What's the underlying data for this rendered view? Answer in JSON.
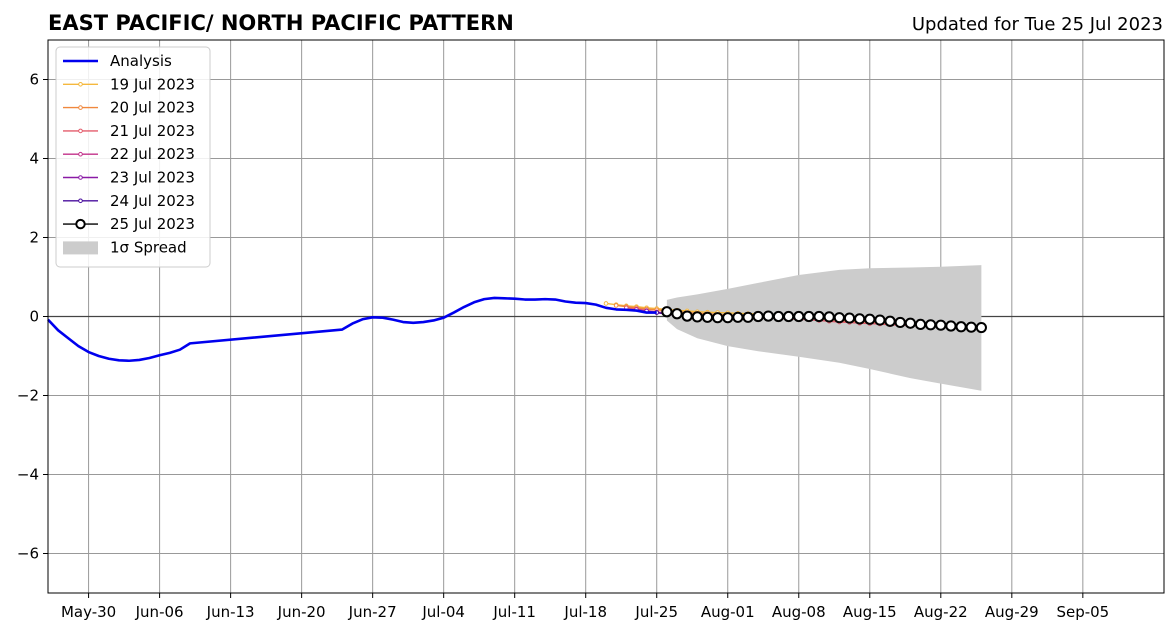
{
  "chart_data": {
    "type": "line",
    "title": "EAST PACIFIC/ NORTH PACIFIC PATTERN",
    "subtitle": "Updated for Tue 25 Jul 2023",
    "xlabel": "",
    "ylabel": "",
    "ylim": [
      -7,
      7
    ],
    "yticks": [
      -6,
      -4,
      -2,
      0,
      2,
      4,
      6
    ],
    "ytick_labels": [
      "−6",
      "−4",
      "−2",
      "0",
      "2",
      "4",
      "6"
    ],
    "xlim": [
      "2023-05-26",
      "2023-09-13"
    ],
    "xtick_dates": [
      "2023-05-30",
      "2023-06-06",
      "2023-06-13",
      "2023-06-20",
      "2023-06-27",
      "2023-07-04",
      "2023-07-11",
      "2023-07-18",
      "2023-07-25",
      "2023-08-01",
      "2023-08-08",
      "2023-08-15",
      "2023-08-22",
      "2023-08-29",
      "2023-09-05"
    ],
    "xtick_labels": [
      "May-30",
      "Jun-06",
      "Jun-13",
      "Jun-20",
      "Jun-27",
      "Jul-04",
      "Jul-11",
      "Jul-18",
      "Jul-25",
      "Aug-01",
      "Aug-08",
      "Aug-15",
      "Aug-22",
      "Aug-29",
      "Sep-05"
    ],
    "grid": true,
    "legend_placement": "top-left",
    "legend": [
      "Analysis",
      "19 Jul 2023",
      "20 Jul 2023",
      "21 Jul 2023",
      "22 Jul 2023",
      "23 Jul 2023",
      "24 Jul 2023",
      "25 Jul 2023",
      "1σ Spread"
    ],
    "series": [
      {
        "name": "Analysis",
        "color": "#0000ee",
        "x": [
          "2023-05-26",
          "2023-05-27",
          "2023-05-28",
          "2023-05-29",
          "2023-05-30",
          "2023-05-31",
          "2023-06-01",
          "2023-06-02",
          "2023-06-03",
          "2023-06-04",
          "2023-06-05",
          "2023-06-06",
          "2023-06-07",
          "2023-06-08",
          "2023-06-09",
          "2023-06-24",
          "2023-06-25",
          "2023-06-26",
          "2023-06-27",
          "2023-06-28",
          "2023-06-29",
          "2023-06-30",
          "2023-07-01",
          "2023-07-02",
          "2023-07-03",
          "2023-07-04",
          "2023-07-05",
          "2023-07-06",
          "2023-07-07",
          "2023-07-08",
          "2023-07-09",
          "2023-07-10",
          "2023-07-11",
          "2023-07-12",
          "2023-07-13",
          "2023-07-14",
          "2023-07-15",
          "2023-07-16",
          "2023-07-17",
          "2023-07-18",
          "2023-07-19",
          "2023-07-20",
          "2023-07-21",
          "2023-07-22",
          "2023-07-23",
          "2023-07-24",
          "2023-07-25"
        ],
        "values": [
          -0.08,
          -0.35,
          -0.55,
          -0.75,
          -0.9,
          -1.0,
          -1.07,
          -1.11,
          -1.12,
          -1.1,
          -1.05,
          -0.98,
          -0.92,
          -0.84,
          -0.68,
          -0.33,
          -0.18,
          -0.07,
          -0.02,
          -0.03,
          -0.08,
          -0.14,
          -0.16,
          -0.14,
          -0.1,
          -0.03,
          0.1,
          0.24,
          0.36,
          0.44,
          0.47,
          0.46,
          0.45,
          0.43,
          0.43,
          0.44,
          0.43,
          0.38,
          0.35,
          0.34,
          0.3,
          0.22,
          0.18,
          0.17,
          0.15,
          0.1,
          0.1
        ]
      },
      {
        "name": "19 Jul 2023",
        "color": "#f5b83d",
        "x": [
          "2023-07-20",
          "2023-07-21",
          "2023-07-22",
          "2023-07-23",
          "2023-07-24",
          "2023-07-25",
          "2023-07-26",
          "2023-07-27",
          "2023-07-28",
          "2023-07-29",
          "2023-07-30",
          "2023-07-31",
          "2023-08-01",
          "2023-08-02",
          "2023-08-03",
          "2023-08-04"
        ],
        "values": [
          0.33,
          0.3,
          0.27,
          0.25,
          0.22,
          0.2,
          0.18,
          0.16,
          0.14,
          0.12,
          0.11,
          0.1,
          0.09,
          0.08,
          0.07,
          0.06
        ]
      },
      {
        "name": "20 Jul 2023",
        "color": "#f0883e",
        "x": [
          "2023-07-21",
          "2023-07-22",
          "2023-07-23",
          "2023-07-24",
          "2023-07-25",
          "2023-07-26",
          "2023-07-27",
          "2023-07-28",
          "2023-07-29",
          "2023-07-30",
          "2023-07-31",
          "2023-08-01",
          "2023-08-02",
          "2023-08-03",
          "2023-08-04",
          "2023-08-05",
          "2023-08-06",
          "2023-08-07",
          "2023-08-08",
          "2023-08-09",
          "2023-08-10",
          "2023-08-11",
          "2023-08-12",
          "2023-08-13",
          "2023-08-14",
          "2023-08-15",
          "2023-08-16",
          "2023-08-17",
          "2023-08-18",
          "2023-08-19",
          "2023-08-20",
          "2023-08-21"
        ],
        "values": [
          0.28,
          0.25,
          0.22,
          0.19,
          0.17,
          0.14,
          0.12,
          0.1,
          0.08,
          0.07,
          0.05,
          0.04,
          0.03,
          0.02,
          0.01,
          0.0,
          -0.01,
          -0.02,
          -0.03,
          -0.05,
          -0.06,
          -0.08,
          -0.1,
          -0.12,
          -0.13,
          -0.15,
          -0.16,
          -0.18,
          -0.19,
          -0.2,
          -0.22,
          -0.23
        ]
      },
      {
        "name": "21 Jul 2023",
        "color": "#e35b6b",
        "x": [
          "2023-07-22",
          "2023-07-23",
          "2023-07-24",
          "2023-07-25",
          "2023-07-26",
          "2023-07-27",
          "2023-07-28",
          "2023-07-29",
          "2023-07-30",
          "2023-07-31",
          "2023-08-01",
          "2023-08-02",
          "2023-08-03",
          "2023-08-04",
          "2023-08-05",
          "2023-08-06",
          "2023-08-07",
          "2023-08-08",
          "2023-08-09",
          "2023-08-10",
          "2023-08-11",
          "2023-08-12",
          "2023-08-13",
          "2023-08-14",
          "2023-08-15",
          "2023-08-16",
          "2023-08-17",
          "2023-08-18",
          "2023-08-19",
          "2023-08-20",
          "2023-08-21",
          "2023-08-22"
        ],
        "values": [
          0.22,
          0.19,
          0.15,
          0.12,
          0.09,
          0.06,
          0.03,
          0.01,
          -0.01,
          -0.02,
          -0.03,
          -0.04,
          -0.04,
          -0.04,
          -0.04,
          -0.05,
          -0.06,
          -0.07,
          -0.08,
          -0.1,
          -0.12,
          -0.14,
          -0.15,
          -0.17,
          -0.18,
          -0.19,
          -0.21,
          -0.22,
          -0.23,
          -0.24,
          -0.25,
          -0.26
        ]
      },
      {
        "name": "22 Jul 2023",
        "color": "#c2308a",
        "x": [
          "2023-07-23",
          "2023-07-24",
          "2023-07-25",
          "2023-07-26",
          "2023-07-27",
          "2023-07-28",
          "2023-07-29",
          "2023-07-30",
          "2023-07-31",
          "2023-08-01",
          "2023-08-02",
          "2023-08-03",
          "2023-08-04",
          "2023-08-05",
          "2023-08-06",
          "2023-08-07",
          "2023-08-08"
        ],
        "values": [
          0.18,
          0.14,
          0.1,
          0.06,
          0.03,
          0.0,
          -0.02,
          -0.03,
          -0.04,
          -0.04,
          -0.04,
          -0.03,
          -0.03,
          -0.02,
          -0.02,
          -0.02,
          -0.03
        ]
      },
      {
        "name": "23 Jul 2023",
        "color": "#8a1aa6",
        "x": [
          "2023-07-24",
          "2023-07-25",
          "2023-07-26",
          "2023-07-27",
          "2023-07-28",
          "2023-07-29",
          "2023-07-30",
          "2023-07-31",
          "2023-08-01"
        ],
        "values": [
          0.14,
          0.1,
          0.06,
          0.03,
          0.0,
          -0.02,
          -0.03,
          -0.04,
          -0.04
        ]
      },
      {
        "name": "24 Jul 2023",
        "color": "#4a0f9e",
        "x": [
          "2023-07-25",
          "2023-07-26",
          "2023-07-27",
          "2023-07-28",
          "2023-07-29",
          "2023-07-30"
        ],
        "values": [
          0.1,
          0.07,
          0.03,
          0.0,
          -0.02,
          -0.03
        ]
      },
      {
        "name": "25 Jul 2023",
        "color": "#000000",
        "marker_fill": "#ffffff",
        "x": [
          "2023-07-26",
          "2023-07-27",
          "2023-07-28",
          "2023-07-29",
          "2023-07-30",
          "2023-07-31",
          "2023-08-01",
          "2023-08-02",
          "2023-08-03",
          "2023-08-04",
          "2023-08-05",
          "2023-08-06",
          "2023-08-07",
          "2023-08-08",
          "2023-08-09",
          "2023-08-10",
          "2023-08-11",
          "2023-08-12",
          "2023-08-13",
          "2023-08-14",
          "2023-08-15",
          "2023-08-16",
          "2023-08-17",
          "2023-08-18",
          "2023-08-19",
          "2023-08-20",
          "2023-08-21",
          "2023-08-22",
          "2023-08-23",
          "2023-08-24",
          "2023-08-25",
          "2023-08-26"
        ],
        "values": [
          0.12,
          0.07,
          0.01,
          -0.01,
          -0.02,
          -0.03,
          -0.03,
          -0.02,
          -0.02,
          0.0,
          0.01,
          0.0,
          0.0,
          0.0,
          0.0,
          0.0,
          -0.01,
          -0.03,
          -0.04,
          -0.06,
          -0.07,
          -0.09,
          -0.12,
          -0.15,
          -0.17,
          -0.2,
          -0.21,
          -0.22,
          -0.24,
          -0.26,
          -0.27,
          -0.28
        ]
      }
    ],
    "spread": {
      "name": "1σ Spread",
      "color": "#cccccc",
      "x": [
        "2023-07-26",
        "2023-07-27",
        "2023-07-29",
        "2023-08-01",
        "2023-08-04",
        "2023-08-08",
        "2023-08-12",
        "2023-08-15",
        "2023-08-19",
        "2023-08-22",
        "2023-08-26"
      ],
      "upper": [
        0.42,
        0.48,
        0.56,
        0.7,
        0.85,
        1.05,
        1.18,
        1.22,
        1.24,
        1.26,
        1.3
      ],
      "lower": [
        -0.1,
        -0.32,
        -0.55,
        -0.75,
        -0.88,
        -1.02,
        -1.17,
        -1.33,
        -1.56,
        -1.7,
        -1.88
      ]
    }
  }
}
